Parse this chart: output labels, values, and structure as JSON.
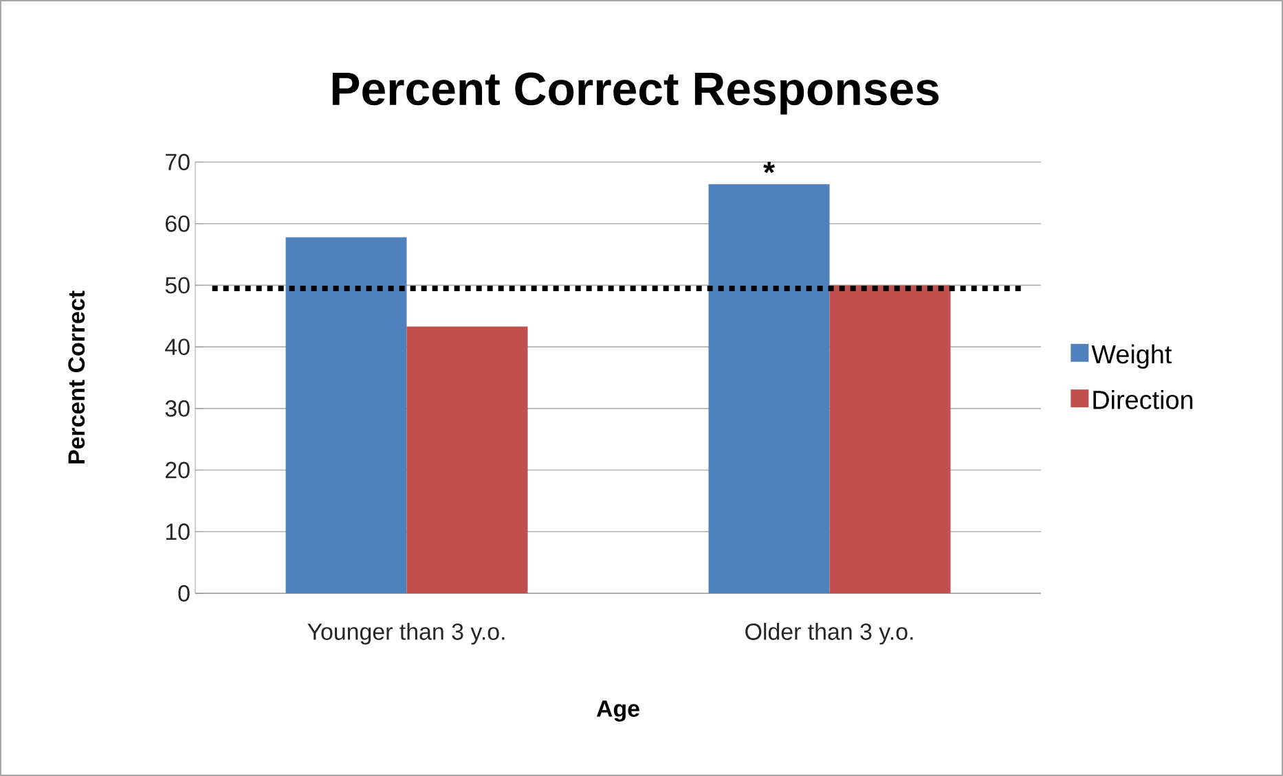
{
  "chart_data": {
    "type": "bar",
    "title": "Percent Correct Responses",
    "xlabel": "Age",
    "ylabel": "Percent Correct",
    "categories": [
      "Younger than 3 y.o.",
      "Older than 3 y.o."
    ],
    "series": [
      {
        "name": "Weight",
        "color": "#4f81bd",
        "values": [
          57.8,
          66.4
        ]
      },
      {
        "name": "Direction",
        "color": "#c0504d",
        "values": [
          43.3,
          50.0
        ]
      }
    ],
    "ylim": [
      0,
      70
    ],
    "yticks": [
      0,
      10,
      20,
      30,
      40,
      50,
      60,
      70
    ],
    "grid": "y",
    "legend": "right",
    "ref_lines": [
      {
        "axis": "y",
        "value": 49.5,
        "color": "#000000",
        "line_style": "dotted"
      }
    ],
    "annotations": [
      {
        "text": "*",
        "x": "Older than 3 y.o.",
        "y": 66.4
      }
    ]
  }
}
